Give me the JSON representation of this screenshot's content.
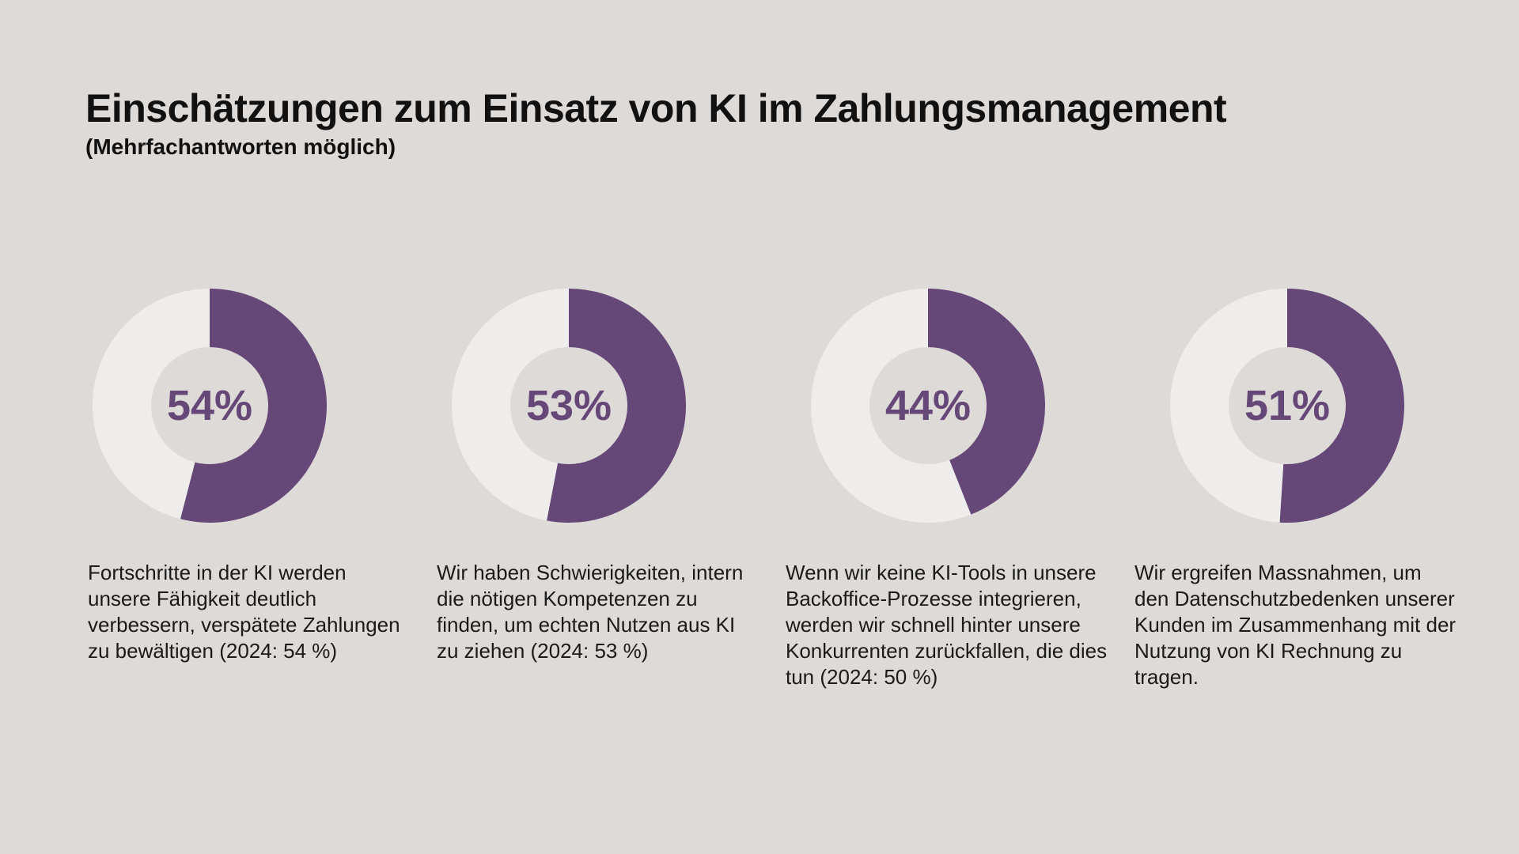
{
  "title": "Einschätzungen zum Einsatz von KI im Zahlungsmanagement",
  "subtitle": "(Mehrfachantworten möglich)",
  "colors": {
    "background": "#dedad7",
    "filled": "#654878",
    "remaining": "#efedec",
    "label": "#654878"
  },
  "chart_data": {
    "type": "pie",
    "variant": "donut",
    "unit": "%",
    "items": [
      {
        "value": 54,
        "label": "54%",
        "description": "Fortschritte in der KI werden unsere Fähigkeit deutlich verbessern, verspätete Zahlungen zu bewältigen (2024: 54 %)"
      },
      {
        "value": 53,
        "label": "53%",
        "description": "Wir haben Schwierigkeiten, intern die nötigen Kompetenzen zu finden, um echten Nutzen aus KI zu ziehen (2024: 53 %)"
      },
      {
        "value": 44,
        "label": "44%",
        "description": "Wenn wir keine KI-Tools in unsere Backoffice-Prozesse integrieren, werden wir schnell hinter unsere Konkurrenten zurückfallen, die dies tun (2024: 50 %)"
      },
      {
        "value": 51,
        "label": "51%",
        "description": "Wir ergreifen Massnahmen, um den Datenschutzbedenken unserer Kunden im Zusammenhang mit der Nutzung von KI Rechnung zu tragen."
      }
    ]
  }
}
